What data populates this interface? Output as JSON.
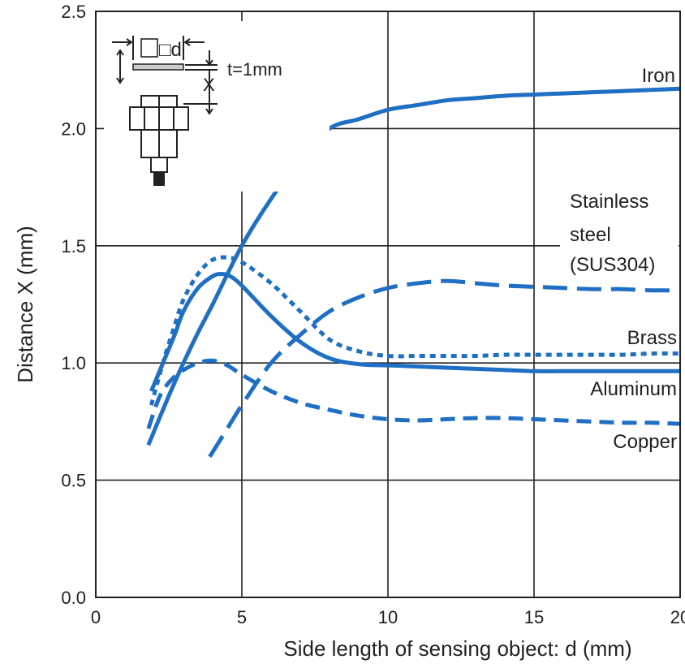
{
  "chart_data": {
    "type": "line",
    "title": "",
    "xlabel": "Side length of sensing object: d (mm)",
    "ylabel": "Distance X (mm)",
    "xlim": [
      0,
      20
    ],
    "ylim": [
      0,
      2.5
    ],
    "xticks": [
      0,
      5,
      10,
      15,
      20
    ],
    "yticks": [
      0.0,
      0.5,
      1.0,
      1.5,
      2.0,
      2.5
    ],
    "xtick_labels": [
      "0",
      "5",
      "10",
      "15",
      "20"
    ],
    "ytick_labels": [
      "0.0",
      "0.5",
      "1.0",
      "1.5",
      "2.0",
      "2.5"
    ],
    "grid": true,
    "line_color": "#1f6fc4",
    "series": [
      {
        "name": "Iron",
        "style": "solid",
        "x": [
          1.8,
          2.5,
          3.0,
          3.5,
          4.0,
          5.0,
          6.0,
          7.0,
          8.0,
          9.0,
          10.0,
          11.0,
          12.0,
          13.0,
          14.0,
          15.0,
          16.0,
          17.0,
          18.0,
          19.0,
          20.0
        ],
        "y": [
          0.65,
          0.86,
          1.0,
          1.13,
          1.25,
          1.5,
          1.7,
          1.87,
          2.0,
          2.04,
          2.08,
          2.1,
          2.12,
          2.13,
          2.14,
          2.145,
          2.15,
          2.155,
          2.16,
          2.165,
          2.17
        ]
      },
      {
        "label_lines": [
          "Stainless",
          "steel",
          "(SUS304)"
        ],
        "style": "dash-long",
        "x": [
          3.9,
          4.5,
          5.0,
          6.0,
          7.0,
          8.0,
          9.0,
          10.0,
          11.0,
          12.0,
          13.0,
          14.0,
          15.0,
          16.0,
          17.0,
          18.0,
          19.0,
          20.0
        ],
        "y": [
          0.6,
          0.72,
          0.82,
          1.0,
          1.12,
          1.22,
          1.28,
          1.32,
          1.34,
          1.35,
          1.34,
          1.33,
          1.325,
          1.32,
          1.315,
          1.315,
          1.31,
          1.31
        ]
      },
      {
        "name": "Brass",
        "style": "dotted",
        "x": [
          1.9,
          2.3,
          2.7,
          3.0,
          3.5,
          4.0,
          4.5,
          5.0,
          6.0,
          7.0,
          8.0,
          9.0,
          10.0,
          11.0,
          12.0,
          13.0,
          14.0,
          15.0,
          16.0,
          17.0,
          18.0,
          19.0,
          20.0
        ],
        "y": [
          0.82,
          1.0,
          1.16,
          1.27,
          1.38,
          1.44,
          1.45,
          1.43,
          1.34,
          1.22,
          1.1,
          1.05,
          1.03,
          1.03,
          1.03,
          1.03,
          1.035,
          1.035,
          1.035,
          1.035,
          1.035,
          1.04,
          1.04
        ]
      },
      {
        "name": "Aluminum",
        "style": "solid",
        "x": [
          1.9,
          2.3,
          2.7,
          3.0,
          3.5,
          4.0,
          4.3,
          4.6,
          5.0,
          6.0,
          7.0,
          8.0,
          9.0,
          10.0,
          11.0,
          12.0,
          13.0,
          14.0,
          15.0,
          16.0,
          17.0,
          18.0,
          19.0,
          20.0
        ],
        "y": [
          0.88,
          1.0,
          1.12,
          1.22,
          1.32,
          1.37,
          1.38,
          1.37,
          1.33,
          1.2,
          1.09,
          1.02,
          0.995,
          0.99,
          0.985,
          0.98,
          0.975,
          0.97,
          0.965,
          0.965,
          0.965,
          0.965,
          0.965,
          0.965
        ]
      },
      {
        "name": "Copper",
        "style": "dashed",
        "x": [
          1.8,
          2.2,
          2.6,
          3.0,
          3.5,
          4.0,
          4.5,
          5.0,
          6.0,
          7.0,
          8.0,
          9.0,
          10.0,
          11.0,
          12.0,
          13.0,
          14.0,
          15.0,
          16.0,
          17.0,
          18.0,
          19.0,
          20.0
        ],
        "y": [
          0.72,
          0.86,
          0.93,
          0.97,
          1.0,
          1.01,
          0.99,
          0.95,
          0.88,
          0.83,
          0.8,
          0.775,
          0.76,
          0.755,
          0.76,
          0.765,
          0.765,
          0.76,
          0.755,
          0.75,
          0.745,
          0.745,
          0.74
        ]
      }
    ],
    "inset": {
      "dimension_label": "□d",
      "thickness_label": "t=1mm",
      "distance_label": "X"
    }
  }
}
